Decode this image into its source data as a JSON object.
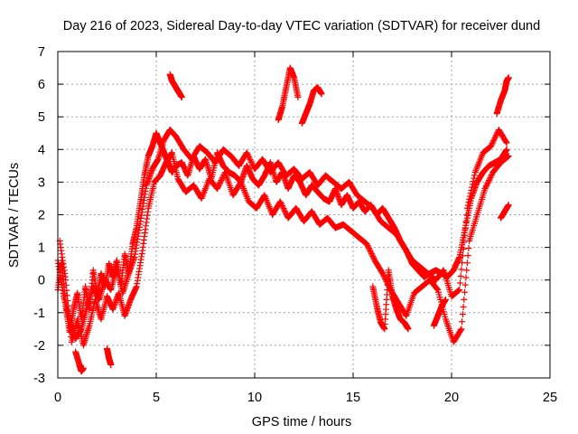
{
  "chart_data": {
    "type": "scatter",
    "title": "Day 216 of 2023, Sidereal Day-to-day VTEC variation (SDTVAR) for receiver dund",
    "xlabel": "GPS time / hours",
    "ylabel": "SDTVAR / TECUs",
    "xlim": [
      0,
      25
    ],
    "ylim": [
      -3,
      7
    ],
    "xticks": [
      "0",
      "5",
      "10",
      "15",
      "20",
      "25"
    ],
    "yticks": [
      "-3",
      "-2",
      "-1",
      "0",
      "1",
      "2",
      "3",
      "4",
      "5",
      "6",
      "7"
    ],
    "grid": true,
    "marker": "+",
    "series": [
      {
        "name": "SDTVAR",
        "color": "#ff0000",
        "tracks": [
          {
            "x": [
              0.0,
              0.2,
              0.4,
              0.6,
              0.8,
              1.0,
              1.2,
              1.4,
              1.6,
              1.8,
              2.0,
              2.2,
              2.4,
              2.6,
              2.8,
              3.0,
              3.2,
              3.4,
              3.6,
              3.8,
              4.0,
              4.2,
              4.4,
              4.6,
              4.8,
              5.0,
              5.2,
              5.4,
              5.6,
              5.8,
              6.0,
              6.3,
              6.6,
              6.9,
              7.2,
              7.5,
              7.8,
              8.1,
              8.4,
              8.7,
              9.0,
              9.3,
              9.6,
              9.9,
              10.2,
              10.5,
              10.8,
              11.1,
              11.4,
              11.7,
              12.0,
              12.3,
              12.6,
              12.9,
              13.2,
              13.5,
              13.8,
              14.1,
              14.4,
              14.7,
              15.0,
              15.3,
              15.6,
              15.9,
              16.2,
              16.5,
              16.8,
              17.1,
              17.4,
              17.7,
              18.0,
              18.3,
              18.6,
              18.9,
              19.2,
              19.5,
              19.8,
              20.1,
              20.4,
              20.7,
              21.0,
              21.3,
              21.6,
              21.9,
              22.2,
              22.5,
              22.8
            ],
            "y": [
              -0.3,
              0.6,
              -0.8,
              -1.6,
              -0.9,
              -0.4,
              -1.2,
              -0.2,
              -0.9,
              0.3,
              -0.5,
              0.2,
              -0.2,
              0.5,
              0.1,
              0.6,
              -0.2,
              0.8,
              0.2,
              1.1,
              1.6,
              2.4,
              3.2,
              3.8,
              4.1,
              4.5,
              4.2,
              3.9,
              3.6,
              3.3,
              3.5,
              3.6,
              3.2,
              3.8,
              3.4,
              3.7,
              3.1,
              3.9,
              3.5,
              3.3,
              3.2,
              3.0,
              3.5,
              3.1,
              2.9,
              3.2,
              3.6,
              3.0,
              3.3,
              2.8,
              3.2,
              3.0,
              2.6,
              2.9,
              2.7,
              2.5,
              2.4,
              2.8,
              2.3,
              2.6,
              2.2,
              2.4,
              2.1,
              2.3,
              2.0,
              2.2,
              1.9,
              1.6,
              1.2,
              0.9,
              0.5,
              0.3,
              0.1,
              0.2,
              0.3,
              0.2,
              0.1,
              0.3,
              0.7,
              1.6,
              2.5,
              3.0,
              3.3,
              3.5,
              3.6,
              3.7,
              4.0
            ]
          },
          {
            "x": [
              0.0,
              0.3,
              0.6,
              0.9,
              1.2,
              1.5,
              1.8,
              2.1,
              2.4,
              2.7,
              3.0,
              3.3,
              3.6,
              3.9,
              4.2,
              4.5,
              4.8,
              5.1,
              5.4,
              5.7,
              6.0,
              6.4,
              6.8,
              7.2,
              7.6,
              8.0,
              8.4,
              8.8,
              9.2,
              9.6,
              10.0,
              10.4,
              10.8,
              11.2,
              11.6,
              12.0,
              12.4,
              12.8,
              13.2,
              13.6,
              14.0,
              14.4,
              14.8,
              15.2,
              15.6,
              16.0,
              16.4,
              16.8,
              17.2,
              17.6,
              18.0,
              18.4,
              18.8,
              19.2,
              19.6,
              20.0,
              20.4,
              20.8,
              21.2,
              21.6,
              22.0,
              22.4,
              22.8
            ],
            "y": [
              0.6,
              -0.5,
              -1.2,
              -1.8,
              -1.5,
              -0.8,
              -0.2,
              -0.6,
              0.0,
              -0.3,
              0.4,
              -0.4,
              0.2,
              0.7,
              1.8,
              2.9,
              3.4,
              3.7,
              4.3,
              4.6,
              4.4,
              4.0,
              3.7,
              4.1,
              3.9,
              3.6,
              4.0,
              3.8,
              3.5,
              3.9,
              3.4,
              3.7,
              3.3,
              3.6,
              3.2,
              3.4,
              3.1,
              3.3,
              2.9,
              3.2,
              3.0,
              2.8,
              3.0,
              2.6,
              2.4,
              2.2,
              1.8,
              1.6,
              1.4,
              1.0,
              0.6,
              0.4,
              0.2,
              0.0,
              0.3,
              -0.5,
              -0.3,
              2.2,
              3.3,
              3.9,
              4.1,
              4.6,
              4.2
            ]
          },
          {
            "x": [
              0.1,
              0.4,
              0.7,
              1.0,
              1.3,
              1.6,
              1.9,
              2.2,
              2.5,
              2.8,
              3.1,
              3.4,
              3.7,
              4.0,
              4.3,
              4.6,
              4.9,
              5.2,
              5.5,
              5.8,
              6.1,
              6.5,
              6.9,
              7.3,
              7.7,
              8.1,
              8.5,
              8.9,
              9.3,
              9.7,
              10.1,
              10.5,
              10.9,
              11.3,
              11.7,
              12.1,
              12.5,
              12.9,
              13.3,
              13.7,
              14.1,
              14.5,
              14.9,
              15.3,
              15.7,
              16.1,
              16.5,
              16.9,
              17.3,
              17.7,
              18.1,
              18.5,
              18.9,
              19.3,
              19.7,
              20.1,
              20.5,
              20.9,
              21.3,
              21.7,
              22.1,
              22.5,
              22.9
            ],
            "y": [
              1.2,
              0.0,
              -1.9,
              -1.2,
              -2.0,
              -1.4,
              -0.6,
              -1.2,
              -0.5,
              -0.9,
              -0.4,
              -1.1,
              -0.6,
              -0.2,
              0.9,
              2.2,
              3.0,
              3.2,
              3.6,
              3.9,
              3.1,
              2.7,
              2.9,
              2.5,
              3.1,
              2.8,
              3.3,
              2.6,
              3.0,
              2.4,
              2.2,
              2.6,
              2.0,
              2.4,
              1.9,
              2.2,
              1.8,
              2.1,
              1.7,
              1.9,
              1.6,
              1.7,
              1.5,
              1.3,
              1.1,
              0.6,
              0.2,
              -0.3,
              -0.7,
              -1.1,
              -0.4,
              -0.2,
              0.0,
              -0.3,
              -1.2,
              -1.9,
              -1.5,
              1.2,
              2.0,
              2.8,
              3.3,
              3.6,
              3.8
            ]
          },
          {
            "x": [
              5.7,
              5.8,
              5.9,
              6.0,
              6.1,
              6.2,
              6.3
            ],
            "y": [
              6.3,
              6.1,
              6.0,
              5.9,
              5.8,
              5.7,
              5.6
            ]
          },
          {
            "x": [
              11.2,
              11.4,
              11.6,
              11.8,
              12.0,
              12.2
            ],
            "y": [
              4.9,
              5.3,
              5.9,
              6.5,
              6.2,
              5.6
            ]
          },
          {
            "x": [
              12.4,
              12.6,
              12.8,
              13.0,
              13.2,
              13.4
            ],
            "y": [
              4.8,
              5.1,
              5.4,
              5.8,
              5.9,
              5.7
            ]
          },
          {
            "x": [
              16.0,
              16.2,
              16.4,
              16.6,
              16.8,
              17.0,
              17.2,
              17.4,
              17.6,
              17.8
            ],
            "y": [
              -0.2,
              -0.8,
              -1.3,
              -1.5,
              0.3,
              -0.5,
              -0.9,
              -1.2,
              -1.3,
              -1.5
            ]
          },
          {
            "x": [
              0.9,
              1.1,
              1.2,
              1.3
            ],
            "y": [
              -2.2,
              -2.6,
              -2.8,
              -2.7
            ]
          },
          {
            "x": [
              2.5,
              2.6,
              2.7
            ],
            "y": [
              -2.1,
              -2.4,
              -2.6
            ]
          },
          {
            "x": [
              22.3,
              22.5,
              22.7,
              22.8,
              22.9
            ],
            "y": [
              5.1,
              5.5,
              5.8,
              6.1,
              6.2
            ]
          },
          {
            "x": [
              22.5,
              22.7,
              22.9
            ],
            "y": [
              1.9,
              2.1,
              2.3
            ]
          },
          {
            "x": [
              19.1,
              19.3,
              19.5,
              19.7
            ],
            "y": [
              -1.4,
              -1.1,
              -0.8,
              -0.6
            ]
          }
        ]
      }
    ]
  }
}
